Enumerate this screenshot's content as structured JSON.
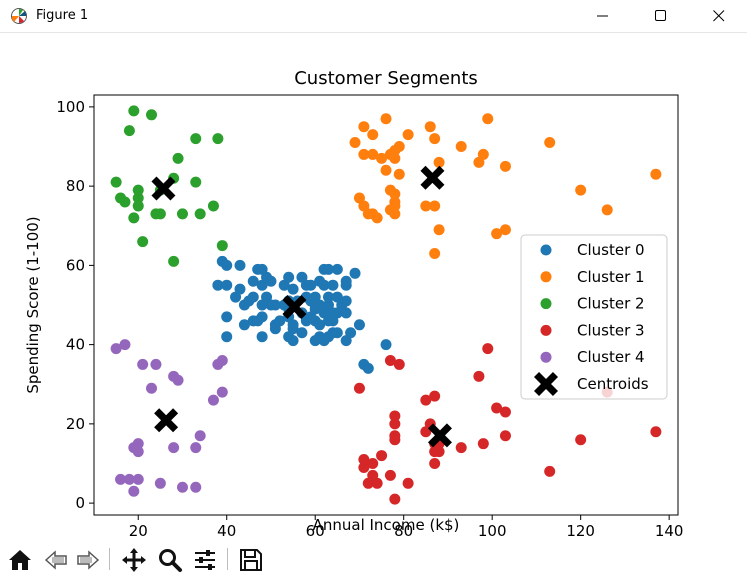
{
  "window": {
    "title": "Figure 1"
  },
  "toolbar": {
    "icons": [
      "home-icon",
      "back-icon",
      "forward-icon",
      "pan-icon",
      "zoom-icon",
      "configure-subplots-icon",
      "save-icon"
    ]
  },
  "colors": {
    "cluster0": "#1f77b4",
    "cluster1": "#ff7f0e",
    "cluster2": "#2ca02c",
    "cluster3": "#d62728",
    "cluster4": "#9467bd",
    "centroids": "#000000"
  },
  "chart_data": {
    "type": "scatter",
    "title": "Customer Segments",
    "xlabel": "Annual Income (k$)",
    "ylabel": "Spending Score (1-100)",
    "xlim": [
      10,
      142
    ],
    "ylim": [
      -3,
      103
    ],
    "xticks": [
      20,
      40,
      60,
      80,
      100,
      120,
      140
    ],
    "yticks": [
      0,
      20,
      40,
      60,
      80,
      100
    ],
    "grid": false,
    "legend_position": "right",
    "series": [
      {
        "name": "Cluster 0",
        "marker": "circle",
        "color": "#1f77b4",
        "points": [
          [
            39,
            61
          ],
          [
            38,
            55
          ],
          [
            40,
            60
          ],
          [
            40,
            55
          ],
          [
            40,
            47
          ],
          [
            40,
            42
          ],
          [
            42,
            52
          ],
          [
            43,
            54
          ],
          [
            43,
            60
          ],
          [
            44,
            45
          ],
          [
            44,
            50
          ],
          [
            45,
            51
          ],
          [
            46,
            46
          ],
          [
            46,
            56
          ],
          [
            46,
            52
          ],
          [
            47,
            59
          ],
          [
            48,
            59
          ],
          [
            48,
            47
          ],
          [
            48,
            55
          ],
          [
            48,
            42
          ],
          [
            49,
            52
          ],
          [
            49,
            57
          ],
          [
            50,
            56
          ],
          [
            50,
            50
          ],
          [
            51,
            45
          ],
          [
            51,
            44
          ],
          [
            52,
            46
          ],
          [
            53,
            55
          ],
          [
            53,
            50
          ],
          [
            54,
            49
          ],
          [
            54,
            51
          ],
          [
            54,
            42
          ],
          [
            54,
            57
          ],
          [
            55,
            44
          ],
          [
            55,
            54
          ],
          [
            55,
            45
          ],
          [
            56,
            51
          ],
          [
            57,
            48
          ],
          [
            57,
            57
          ],
          [
            58,
            52
          ],
          [
            58,
            46
          ],
          [
            59,
            55
          ],
          [
            59,
            51
          ],
          [
            60,
            49
          ],
          [
            60,
            46
          ],
          [
            60,
            52
          ],
          [
            60,
            50
          ],
          [
            61,
            45
          ],
          [
            61,
            56
          ],
          [
            61,
            42
          ],
          [
            62,
            55
          ],
          [
            62,
            48
          ],
          [
            62,
            41
          ],
          [
            62,
            59
          ],
          [
            63,
            50
          ],
          [
            63,
            46
          ],
          [
            63,
            52
          ],
          [
            63,
            42
          ],
          [
            64,
            55
          ],
          [
            64,
            48
          ],
          [
            64,
            43
          ],
          [
            64,
            46
          ],
          [
            65,
            52
          ],
          [
            65,
            48
          ],
          [
            65,
            59
          ],
          [
            66,
            50
          ],
          [
            67,
            55
          ],
          [
            67,
            41
          ],
          [
            67,
            51
          ],
          [
            67,
            48
          ],
          [
            67,
            56
          ],
          [
            68,
            43
          ],
          [
            69,
            58
          ],
          [
            70,
            45
          ],
          [
            71,
            35
          ],
          [
            72,
            34
          ],
          [
            76,
            40
          ],
          [
            54,
            47
          ],
          [
            55,
            41
          ],
          [
            58,
            55
          ],
          [
            60,
            41
          ],
          [
            59,
            47
          ],
          [
            57,
            43
          ],
          [
            61,
            50
          ],
          [
            63,
            59
          ],
          [
            65,
            43
          ],
          [
            54,
            51
          ],
          [
            48,
            50
          ],
          [
            51,
            50
          ],
          [
            47,
            46
          ]
        ]
      },
      {
        "name": "Cluster 1",
        "marker": "circle",
        "color": "#ff7f0e",
        "points": [
          [
            69,
            91
          ],
          [
            70,
            77
          ],
          [
            71,
            95
          ],
          [
            71,
            75
          ],
          [
            71,
            88
          ],
          [
            72,
            73
          ],
          [
            73,
            73
          ],
          [
            73,
            93
          ],
          [
            73,
            88
          ],
          [
            74,
            72
          ],
          [
            75,
            87
          ],
          [
            76,
            97
          ],
          [
            76,
            84
          ],
          [
            77,
            74
          ],
          [
            77,
            79
          ],
          [
            77,
            88
          ],
          [
            78,
            76
          ],
          [
            78,
            89
          ],
          [
            78,
            73
          ],
          [
            78,
            75
          ],
          [
            78,
            78
          ],
          [
            78,
            87
          ],
          [
            79,
            83
          ],
          [
            79,
            90
          ],
          [
            81,
            93
          ],
          [
            85,
            75
          ],
          [
            86,
            95
          ],
          [
            87,
            63
          ],
          [
            87,
            75
          ],
          [
            87,
            92
          ],
          [
            88,
            69
          ],
          [
            88,
            86
          ],
          [
            93,
            90
          ],
          [
            97,
            86
          ],
          [
            98,
            88
          ],
          [
            99,
            97
          ],
          [
            101,
            68
          ],
          [
            103,
            85
          ],
          [
            103,
            69
          ],
          [
            113,
            91
          ],
          [
            120,
            79
          ],
          [
            126,
            74
          ],
          [
            137,
            83
          ]
        ]
      },
      {
        "name": "Cluster 2",
        "marker": "circle",
        "color": "#2ca02c",
        "points": [
          [
            15,
            81
          ],
          [
            16,
            77
          ],
          [
            17,
            76
          ],
          [
            18,
            94
          ],
          [
            19,
            72
          ],
          [
            19,
            99
          ],
          [
            20,
            77
          ],
          [
            20,
            79
          ],
          [
            21,
            66
          ],
          [
            23,
            98
          ],
          [
            24,
            73
          ],
          [
            25,
            73
          ],
          [
            28,
            82
          ],
          [
            28,
            61
          ],
          [
            29,
            87
          ],
          [
            30,
            73
          ],
          [
            33,
            92
          ],
          [
            33,
            81
          ],
          [
            34,
            73
          ],
          [
            37,
            75
          ],
          [
            38,
            92
          ],
          [
            39,
            65
          ],
          [
            25,
            79
          ],
          [
            20,
            75
          ]
        ]
      },
      {
        "name": "Cluster 3",
        "marker": "circle",
        "color": "#d62728",
        "points": [
          [
            70,
            29
          ],
          [
            71,
            11
          ],
          [
            71,
            9
          ],
          [
            72,
            5
          ],
          [
            73,
            7
          ],
          [
            73,
            10
          ],
          [
            74,
            5
          ],
          [
            75,
            12
          ],
          [
            77,
            36
          ],
          [
            77,
            7
          ],
          [
            78,
            22
          ],
          [
            78,
            1
          ],
          [
            78,
            20
          ],
          [
            78,
            17
          ],
          [
            78,
            16
          ],
          [
            79,
            35
          ],
          [
            81,
            5
          ],
          [
            85,
            26
          ],
          [
            86,
            20
          ],
          [
            87,
            27
          ],
          [
            87,
            13
          ],
          [
            87,
            10
          ],
          [
            87,
            15
          ],
          [
            88,
            13
          ],
          [
            88,
            15
          ],
          [
            93,
            14
          ],
          [
            97,
            32
          ],
          [
            98,
            15
          ],
          [
            99,
            39
          ],
          [
            101,
            24
          ],
          [
            103,
            23
          ],
          [
            103,
            17
          ],
          [
            113,
            8
          ],
          [
            120,
            16
          ],
          [
            126,
            28
          ],
          [
            137,
            18
          ],
          [
            85,
            18
          ]
        ]
      },
      {
        "name": "Cluster 4",
        "marker": "circle",
        "color": "#9467bd",
        "points": [
          [
            15,
            39
          ],
          [
            16,
            6
          ],
          [
            17,
            40
          ],
          [
            18,
            6
          ],
          [
            19,
            3
          ],
          [
            19,
            14
          ],
          [
            20,
            15
          ],
          [
            20,
            13
          ],
          [
            21,
            35
          ],
          [
            23,
            29
          ],
          [
            24,
            35
          ],
          [
            25,
            5
          ],
          [
            28,
            14
          ],
          [
            28,
            32
          ],
          [
            29,
            31
          ],
          [
            30,
            4
          ],
          [
            33,
            4
          ],
          [
            33,
            14
          ],
          [
            34,
            17
          ],
          [
            37,
            26
          ],
          [
            38,
            35
          ],
          [
            39,
            36
          ],
          [
            39,
            28
          ],
          [
            20,
            6
          ]
        ]
      },
      {
        "name": "Centroids",
        "marker": "x-filled",
        "color": "#000000",
        "points": [
          [
            55.3,
            49.5
          ],
          [
            86.5,
            82.1
          ],
          [
            25.7,
            79.4
          ],
          [
            88.2,
            17.1
          ],
          [
            26.3,
            20.9
          ]
        ]
      }
    ]
  }
}
